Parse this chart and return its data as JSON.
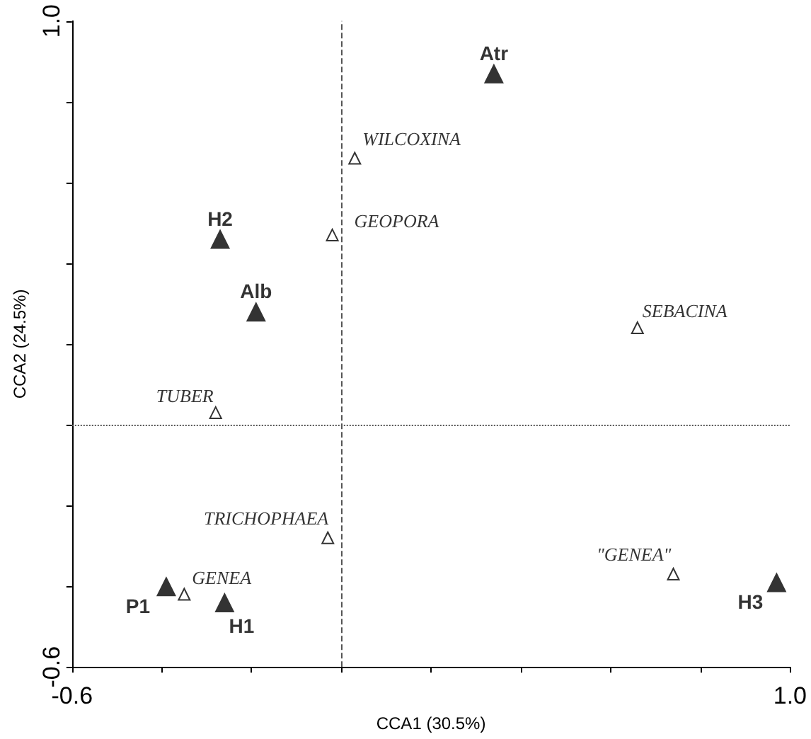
{
  "chart_data": {
    "type": "scatter",
    "xlabel": "CCA1 (30.5%)",
    "ylabel": "CCA2 (24.5%)",
    "xlim": [
      -0.6,
      1.0
    ],
    "ylim": [
      -0.6,
      1.0
    ],
    "xticks": [
      {
        "value": -0.6,
        "label": "-0.6"
      },
      {
        "value": -0.4,
        "label": null
      },
      {
        "value": -0.2,
        "label": null
      },
      {
        "value": 0,
        "label": null
      },
      {
        "value": 0.2,
        "label": null
      },
      {
        "value": 0.4,
        "label": null
      },
      {
        "value": 0.6,
        "label": null
      },
      {
        "value": 0.8,
        "label": null
      },
      {
        "value": 1.0,
        "label": "1.0"
      }
    ],
    "yticks": [
      {
        "value": -0.6,
        "label": "-0.6"
      },
      {
        "value": -0.4,
        "label": null
      },
      {
        "value": -0.2,
        "label": null
      },
      {
        "value": 0,
        "label": null
      },
      {
        "value": 0.2,
        "label": null
      },
      {
        "value": 0.4,
        "label": null
      },
      {
        "value": 0.6,
        "label": null
      },
      {
        "value": 0.8,
        "label": null
      },
      {
        "value": 1.0,
        "label": "1.0"
      }
    ],
    "grid": false,
    "marker": "triangle",
    "series": [
      {
        "color": "#000000",
        "x": [
          0.34,
          -0.27,
          -0.19,
          -0.39,
          -0.26,
          0.97
        ],
        "values": [
          0.87,
          0.46,
          0.28,
          -0.4,
          -0.44,
          -0.39
        ]
      },
      {
        "color": "#000000",
        "x": [
          0.03,
          -0.02,
          0.66,
          -0.28,
          -0.03,
          -0.35,
          0.74
        ],
        "values": [
          0.66,
          0.47,
          0.24,
          0.03,
          -0.28,
          -0.42,
          -0.37
        ]
      }
    ],
    "ref_lines": [
      {
        "axis": "x",
        "value": 0,
        "line_style": "dashed"
      },
      {
        "axis": "y",
        "value": 0,
        "line_style": "dotted"
      }
    ],
    "annotations": [
      {
        "text": "Atr",
        "x": 0.34,
        "y": 0.87
      },
      {
        "text": "H2",
        "x": -0.27,
        "y": 0.46
      },
      {
        "text": "Alb",
        "x": -0.19,
        "y": 0.28
      },
      {
        "text": "P1",
        "x": -0.39,
        "y": -0.4
      },
      {
        "text": "H1",
        "x": -0.26,
        "y": -0.44
      },
      {
        "text": "H3",
        "x": 0.97,
        "y": -0.39
      },
      {
        "text": "WILCOXINA",
        "x": 0.03,
        "y": 0.66
      },
      {
        "text": "GEOPORA",
        "x": -0.02,
        "y": 0.47
      },
      {
        "text": "SEBACINA",
        "x": 0.66,
        "y": 0.24
      },
      {
        "text": "TUBER",
        "x": -0.28,
        "y": 0.03
      },
      {
        "text": "TRICHOPHAEA",
        "x": -0.03,
        "y": -0.28
      },
      {
        "text": "GENEA",
        "x": -0.35,
        "y": -0.42
      },
      {
        "text": "\"GENEA\"",
        "x": 0.74,
        "y": -0.37
      }
    ]
  }
}
